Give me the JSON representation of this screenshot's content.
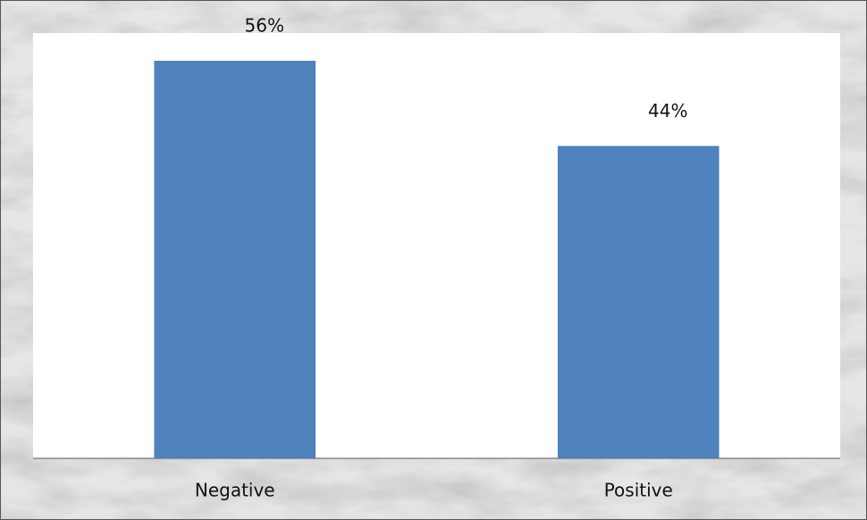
{
  "chart_data": {
    "type": "bar",
    "categories": [
      "Negative",
      "Positive"
    ],
    "values": [
      56,
      44
    ],
    "value_labels": [
      "56%",
      "44%"
    ],
    "color": "#4f81bd"
  }
}
